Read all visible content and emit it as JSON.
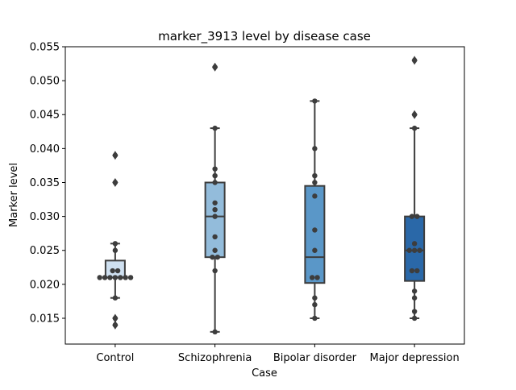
{
  "chart_data": {
    "type": "box",
    "title": "marker_3913 level by disease case",
    "xlabel": "Case",
    "ylabel": "Marker level",
    "ylim": [
      0.0112,
      0.055
    ],
    "yticks": [
      "0.015",
      "0.020",
      "0.025",
      "0.030",
      "0.035",
      "0.040",
      "0.045",
      "0.050",
      "0.055"
    ],
    "ytick_values": [
      0.015,
      0.02,
      0.025,
      0.03,
      0.035,
      0.04,
      0.045,
      0.05,
      0.055
    ],
    "grid": false,
    "legend": "none",
    "categories": [
      "Control",
      "Schizophrenia",
      "Bipolar disorder",
      "Major depression"
    ],
    "colors": [
      "#cfe0f0",
      "#93bcdb",
      "#5a97c8",
      "#2a68a8"
    ],
    "series": [
      {
        "category": "Control",
        "q1": 0.021,
        "median": 0.021,
        "q3": 0.0235,
        "whisker_low": 0.018,
        "whisker_high": 0.026,
        "outliers": [
          0.039,
          0.035,
          0.015,
          0.014
        ],
        "points": [
          0.039,
          0.035,
          0.026,
          0.025,
          0.022,
          0.022,
          0.021,
          0.021,
          0.021,
          0.021,
          0.021,
          0.021,
          0.021,
          0.018,
          0.015,
          0.014
        ]
      },
      {
        "category": "Schizophrenia",
        "q1": 0.024,
        "median": 0.03,
        "q3": 0.035,
        "whisker_low": 0.013,
        "whisker_high": 0.043,
        "outliers": [
          0.052
        ],
        "points": [
          0.052,
          0.043,
          0.037,
          0.036,
          0.035,
          0.032,
          0.031,
          0.03,
          0.027,
          0.025,
          0.024,
          0.024,
          0.022,
          0.013
        ]
      },
      {
        "category": "Bipolar disorder",
        "q1": 0.0202,
        "median": 0.024,
        "q3": 0.0345,
        "whisker_low": 0.015,
        "whisker_high": 0.047,
        "outliers": [],
        "points": [
          0.047,
          0.04,
          0.036,
          0.035,
          0.033,
          0.028,
          0.025,
          0.021,
          0.021,
          0.018,
          0.017,
          0.015
        ]
      },
      {
        "category": "Major depression",
        "q1": 0.0205,
        "median": 0.025,
        "q3": 0.03,
        "whisker_low": 0.015,
        "whisker_high": 0.043,
        "outliers": [
          0.053,
          0.045
        ],
        "points": [
          0.053,
          0.045,
          0.043,
          0.03,
          0.03,
          0.026,
          0.025,
          0.025,
          0.025,
          0.022,
          0.022,
          0.019,
          0.018,
          0.016,
          0.015
        ]
      }
    ]
  }
}
